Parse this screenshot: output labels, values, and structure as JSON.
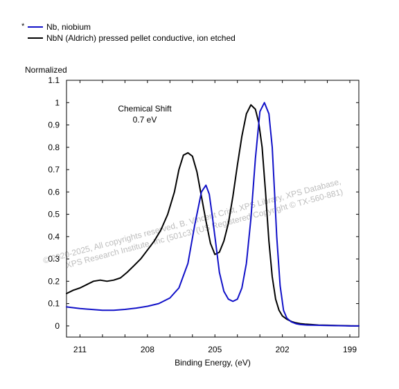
{
  "chart_data": {
    "type": "line",
    "xlabel": "Binding Energy, (eV)",
    "ylabel": "Normalized",
    "xlim": [
      211.6,
      198.6
    ],
    "ylim": [
      -0.05,
      1.1
    ],
    "x_ticks": [
      211,
      208,
      205,
      202,
      199
    ],
    "y_ticks": [
      0,
      0.1,
      0.2,
      0.3,
      0.4,
      0.5,
      0.6,
      0.7,
      0.8,
      0.9,
      1,
      1.1
    ],
    "grid": false,
    "legend_position": "top-left",
    "legend_marker": "*",
    "annotation": [
      "Chemical Shift",
      "0.7 eV"
    ],
    "watermark": [
      "© 2020-2025, All copyrights reserved, B. Vincent Crist, XPS Library, XPS Database,",
      "XPS Research Institute, Inc (501c3) (US Registered Copyright © TX-560-881)"
    ],
    "series": [
      {
        "name": "Nb, niobium",
        "color": "#1010c8",
        "x": [
          211.6,
          211.0,
          210.5,
          210.0,
          209.5,
          209.0,
          208.5,
          208.0,
          207.5,
          207.0,
          206.6,
          206.2,
          205.9,
          205.6,
          205.4,
          205.25,
          205.1,
          204.95,
          204.8,
          204.6,
          204.4,
          204.2,
          204.0,
          203.8,
          203.6,
          203.4,
          203.2,
          203.0,
          202.8,
          202.6,
          202.45,
          202.35,
          202.25,
          202.1,
          201.95,
          201.8,
          201.6,
          201.4,
          201.2,
          200.9,
          200.5,
          200.0,
          199.5,
          199.0,
          198.6
        ],
        "y": [
          0.085,
          0.078,
          0.074,
          0.07,
          0.07,
          0.074,
          0.08,
          0.088,
          0.1,
          0.125,
          0.17,
          0.28,
          0.45,
          0.6,
          0.63,
          0.59,
          0.48,
          0.36,
          0.24,
          0.155,
          0.12,
          0.11,
          0.12,
          0.17,
          0.28,
          0.48,
          0.75,
          0.96,
          1.0,
          0.95,
          0.8,
          0.6,
          0.4,
          0.18,
          0.07,
          0.035,
          0.018,
          0.01,
          0.006,
          0.004,
          0.003,
          0.002,
          0.001,
          0.0,
          0.0
        ]
      },
      {
        "name": "NbN (Aldrich) pressed pellet conductive, ion etched",
        "color": "#000000",
        "x": [
          211.6,
          211.3,
          211.0,
          210.7,
          210.4,
          210.1,
          209.8,
          209.5,
          209.2,
          208.9,
          208.6,
          208.3,
          208.0,
          207.7,
          207.4,
          207.1,
          206.8,
          206.6,
          206.4,
          206.2,
          206.0,
          205.8,
          205.6,
          205.4,
          205.2,
          205.0,
          204.8,
          204.6,
          204.4,
          204.2,
          204.0,
          203.8,
          203.6,
          203.4,
          203.2,
          203.05,
          202.9,
          202.75,
          202.6,
          202.45,
          202.3,
          202.15,
          202.0,
          201.8,
          201.6,
          201.4,
          201.2,
          201.0,
          200.7,
          200.4,
          200.0,
          199.6,
          199.2,
          198.8,
          198.6
        ],
        "y": [
          0.145,
          0.16,
          0.17,
          0.185,
          0.2,
          0.205,
          0.2,
          0.205,
          0.215,
          0.24,
          0.27,
          0.3,
          0.34,
          0.38,
          0.43,
          0.5,
          0.6,
          0.7,
          0.765,
          0.775,
          0.76,
          0.69,
          0.58,
          0.47,
          0.37,
          0.32,
          0.33,
          0.38,
          0.46,
          0.58,
          0.72,
          0.85,
          0.95,
          0.99,
          0.97,
          0.91,
          0.8,
          0.6,
          0.38,
          0.22,
          0.12,
          0.07,
          0.045,
          0.03,
          0.02,
          0.014,
          0.01,
          0.008,
          0.006,
          0.004,
          0.003,
          0.002,
          0.001,
          0.0,
          0.0
        ]
      }
    ]
  }
}
